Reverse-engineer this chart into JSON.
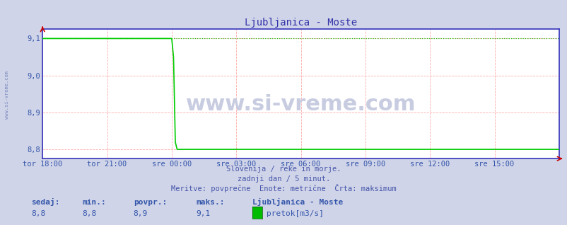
{
  "title": "Ljubljanica - Moste",
  "title_color": "#3333aa",
  "title_fontsize": 10,
  "bg_color": "#d0d4e8",
  "plot_bg_color": "#ffffff",
  "ylim": [
    8.775,
    9.125
  ],
  "yticks": [
    8.8,
    8.9,
    9.0,
    9.1
  ],
  "ytick_labels": [
    "8,8",
    "8,9",
    "9,0",
    "9,1"
  ],
  "xtick_labels": [
    "tor 18:00",
    "tor 21:00",
    "sre 00:00",
    "sre 03:00",
    "sre 06:00",
    "sre 09:00",
    "sre 12:00",
    "sre 15:00"
  ],
  "xtick_positions": [
    0,
    36,
    72,
    108,
    144,
    180,
    216,
    252
  ],
  "total_points": 289,
  "drop_index": 72,
  "high_value": 9.1,
  "low_value": 8.8,
  "line_color": "#00cc00",
  "max_line_color": "#00cc00",
  "spine_color": "#3333bb",
  "tick_color": "#3355aa",
  "watermark_text": "www.si-vreme.com",
  "subtitle1": "Slovenija / reke in morje.",
  "subtitle2": "zadnji dan / 5 minut.",
  "subtitle3": "Meritve: povprečne  Enote: metrične  Črta: maksimum",
  "footer_color": "#4455aa",
  "footer_fontsize": 7.5,
  "legend_title": "Ljubljanica - Moste",
  "legend_color_box": "#00bb00",
  "legend_label": "pretok[m3/s]",
  "stat_sedaj": "8,8",
  "stat_min": "8,8",
  "stat_povpr": "8,9",
  "stat_maks": "9,1",
  "stat_label_sedaj": "sedaj:",
  "stat_label_min": "min.:",
  "stat_label_povpr": "povpr.:",
  "stat_label_maks": "maks.:",
  "arrow_color": "#cc0000",
  "left_label_color": "#7788bb",
  "left_label": "www.si-vreme.com",
  "watermark_color": "#c8cce0",
  "watermark_fontsize": 22
}
